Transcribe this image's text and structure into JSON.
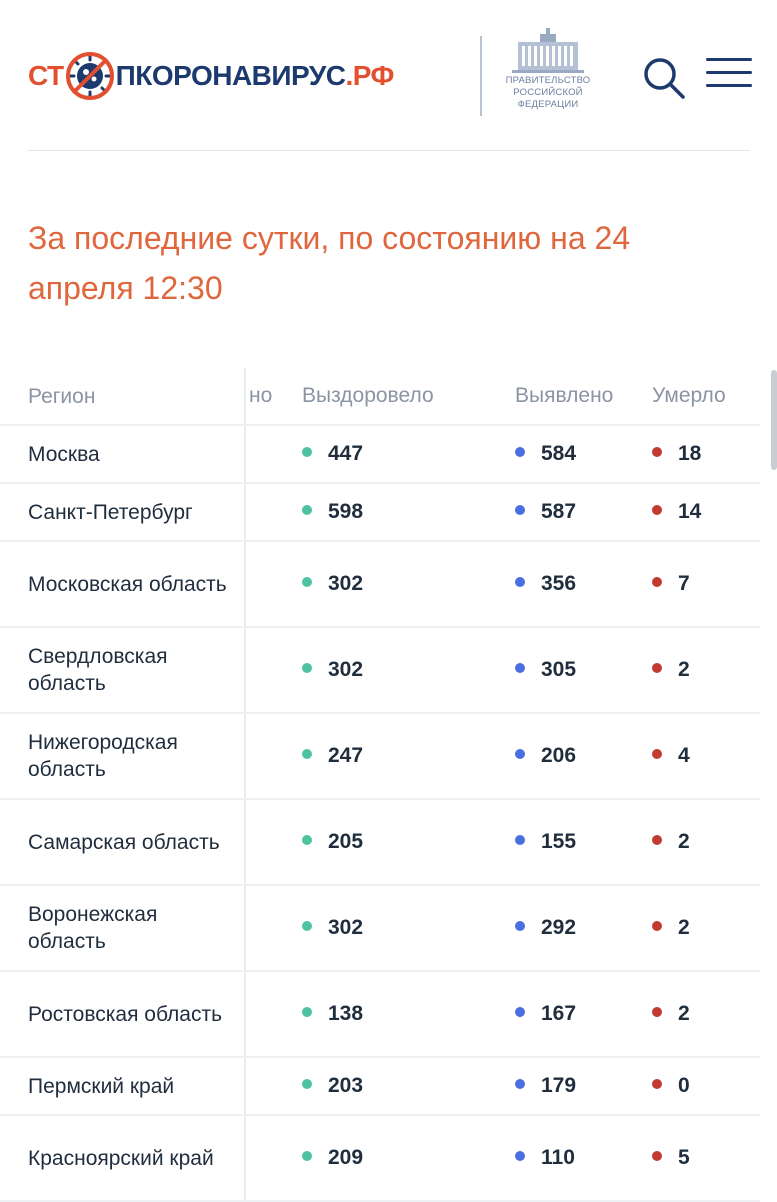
{
  "header": {
    "logo_part1": "СТ",
    "logo_part2": "ПКОРОНАВИРУС",
    "logo_part3": ".РФ",
    "gov_line1": "ПРАВИТЕЛЬСТВО",
    "gov_line2": "РОССИЙСКОЙ",
    "gov_line3": "ФЕДЕРАЦИИ",
    "icons": [
      "virus-stop-icon",
      "government-building-icon",
      "search-icon",
      "menu-icon"
    ]
  },
  "title": "За последние сутки, по состоянию на 24 апреля 12:30",
  "table": {
    "headers": {
      "region": "Регион",
      "cut": "но",
      "recovered": "Выздоровело",
      "detected": "Выявлено",
      "died": "Умерло"
    },
    "rows": [
      {
        "region": "Москва",
        "recovered": "447",
        "detected": "584",
        "died": "18"
      },
      {
        "region": "Санкт-Петербург",
        "recovered": "598",
        "detected": "587",
        "died": "14"
      },
      {
        "region": "Московская область",
        "recovered": "302",
        "detected": "356",
        "died": "7"
      },
      {
        "region": "Свердловская область",
        "recovered": "302",
        "detected": "305",
        "died": "2"
      },
      {
        "region": "Нижегородская область",
        "recovered": "247",
        "detected": "206",
        "died": "4"
      },
      {
        "region": "Самарская область",
        "recovered": "205",
        "detected": "155",
        "died": "2"
      },
      {
        "region": "Воронежская область",
        "recovered": "302",
        "detected": "292",
        "died": "2"
      },
      {
        "region": "Ростовская область",
        "recovered": "138",
        "detected": "167",
        "died": "2"
      },
      {
        "region": "Пермский край",
        "recovered": "203",
        "detected": "179",
        "died": "0"
      },
      {
        "region": "Красноярский край",
        "recovered": "209",
        "detected": "110",
        "died": "5"
      }
    ]
  },
  "colors": {
    "accent": "#e0673d",
    "brand_blue": "#1d3a6e",
    "recovered_dot": "#4cc3a0",
    "detected_dot": "#4a6ee0",
    "died_dot": "#c23b30"
  }
}
